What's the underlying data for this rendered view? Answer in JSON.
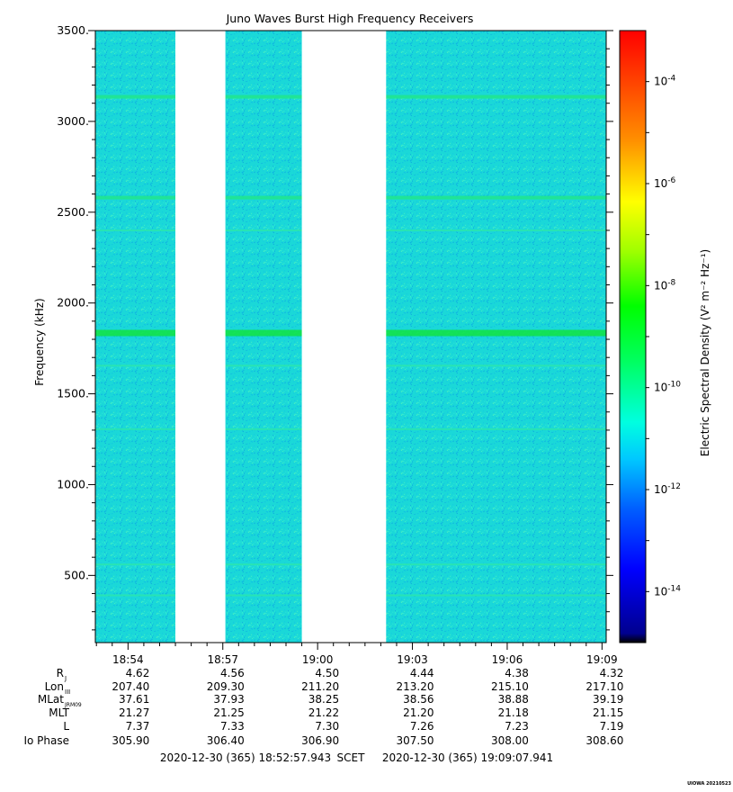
{
  "chart_data": {
    "type": "heatmap",
    "title": "Juno Waves Burst High Frequency Receivers",
    "ylabel": "Frequency (kHz)",
    "colorbar_label": "Electric Spectral Density (V² m⁻² Hz⁻¹)",
    "ylim": [
      130,
      3500
    ],
    "y_ticks": [
      {
        "value": 500,
        "label": "500."
      },
      {
        "value": 1000,
        "label": "1000."
      },
      {
        "value": 1500,
        "label": "1500."
      },
      {
        "value": 2000,
        "label": "2000."
      },
      {
        "value": 2500,
        "label": "2500."
      },
      {
        "value": 3000,
        "label": "3000."
      },
      {
        "value": 3500,
        "label": "3500."
      }
    ],
    "x_range": [
      "18:52:57.943",
      "19:09:07.941"
    ],
    "x_tick_labels": [
      "18:54",
      "18:57",
      "19:00",
      "19:03",
      "19:06",
      "19:09"
    ],
    "x_tick_values": [
      "18:54:00",
      "18:57:00",
      "19:00:00",
      "19:03:00",
      "19:06:00",
      "19:09:00"
    ],
    "data_gaps": [
      {
        "start": "18:55:30",
        "end": "18:57:05"
      },
      {
        "start": "18:59:30",
        "end": "19:02:10"
      }
    ],
    "background_level": "1e-12",
    "emission_lines_khz": [
      {
        "freq": 3135,
        "level": "1e-10"
      },
      {
        "freq": 2580,
        "level": "1e-10"
      },
      {
        "freq": 2400,
        "level": "1e-11"
      },
      {
        "freq": 1835,
        "level": "1e-9"
      },
      {
        "freq": 1655,
        "level": "1e-11"
      },
      {
        "freq": 1305,
        "level": "1e-11"
      },
      {
        "freq": 560,
        "level": "1e-11"
      },
      {
        "freq": 390,
        "level": "1e-11"
      }
    ],
    "colorbar": {
      "scale": "log",
      "range": [
        "1e-15",
        "1e-3"
      ],
      "ticks": [
        {
          "exp": -4,
          "base": "10",
          "sup": "-4"
        },
        {
          "exp": -6,
          "base": "10",
          "sup": "-6"
        },
        {
          "exp": -8,
          "base": "10",
          "sup": "-8"
        },
        {
          "exp": -10,
          "base": "10",
          "sup": "-10"
        },
        {
          "exp": -12,
          "base": "10",
          "sup": "-12"
        },
        {
          "exp": -14,
          "base": "10",
          "sup": "-14"
        }
      ]
    },
    "ephemeris": {
      "rows": [
        {
          "label": "R",
          "sub": "J",
          "values": [
            "4.62",
            "4.56",
            "4.50",
            "4.44",
            "4.38",
            "4.32"
          ]
        },
        {
          "label": "Lon",
          "sub": "III",
          "values": [
            "207.40",
            "209.30",
            "211.20",
            "213.20",
            "215.10",
            "217.10"
          ]
        },
        {
          "label": "MLat",
          "sub": "JRM09",
          "values": [
            "37.61",
            "37.93",
            "38.25",
            "38.56",
            "38.88",
            "39.19"
          ]
        },
        {
          "label": "MLT",
          "sub": "",
          "values": [
            "21.27",
            "21.25",
            "21.22",
            "21.20",
            "21.18",
            "21.15"
          ]
        },
        {
          "label": "L",
          "sub": "",
          "values": [
            "7.37",
            "7.33",
            "7.30",
            "7.26",
            "7.23",
            "7.19"
          ]
        },
        {
          "label": "Io Phase",
          "sub": "",
          "values": [
            "305.90",
            "306.40",
            "306.90",
            "307.50",
            "308.00",
            "308.60"
          ]
        }
      ]
    },
    "time_footer": {
      "start": "2020-12-30 (365) 18:52:57.943",
      "scet": "SCET",
      "end": "2020-12-30 (365) 19:09:07.941"
    },
    "credit": "UIOWA 20210523",
    "colors": {
      "background": "#1ad8d8",
      "line_weak": "#2ae6b0",
      "line_mid": "#20e690",
      "line_strong": "#12e24a"
    }
  }
}
